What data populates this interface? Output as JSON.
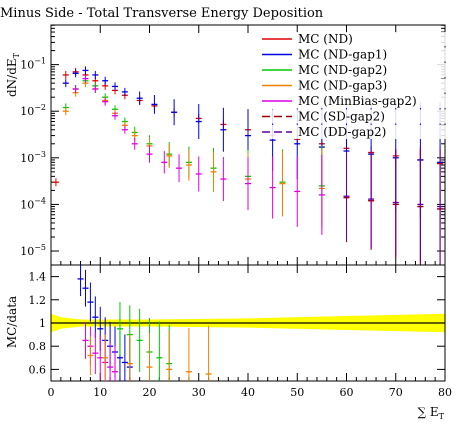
{
  "chart_data": [
    {
      "type": "scatter",
      "title": "Minus Side - Total Transverse Energy Deposition",
      "ylabel": "dN/dE_T",
      "xlabel": "",
      "xlim": [
        0,
        80
      ],
      "ylim_log10": [
        -5.3,
        -0.15
      ],
      "yscale": "log",
      "x_ticks": [
        0,
        10,
        20,
        30,
        40,
        50,
        60,
        70,
        80
      ],
      "y_ticks": [
        {
          "exp": -1,
          "label_base": "10",
          "label_exp": "−1"
        },
        {
          "exp": -2,
          "label_base": "10",
          "label_exp": "−2"
        },
        {
          "exp": -3,
          "label_base": "10",
          "label_exp": "−3"
        },
        {
          "exp": -4,
          "label_base": "10",
          "label_exp": "−4"
        },
        {
          "exp": -5,
          "label_base": "10",
          "label_exp": "−5"
        }
      ],
      "series": [
        {
          "name": "MC (ND)",
          "color": "#e00000",
          "style": "solid",
          "x": [
            1,
            3,
            5,
            7,
            9,
            11,
            13,
            15,
            18,
            21,
            25,
            30,
            35,
            40,
            45,
            50,
            55,
            60,
            65,
            70,
            75,
            79
          ],
          "y": [
            0.0003,
            0.06,
            0.07,
            0.06,
            0.045,
            0.035,
            0.028,
            0.022,
            0.017,
            0.013,
            0.0095,
            0.007,
            0.0052,
            0.004,
            0.0031,
            0.0025,
            0.002,
            0.0016,
            0.0013,
            0.0011,
            0.0009,
            0.00075
          ]
        },
        {
          "name": "MC (ND-gap1)",
          "color": "#0000e0",
          "style": "solid",
          "x": [
            3,
            5,
            7,
            9,
            11,
            13,
            15,
            18,
            21,
            25,
            30,
            35,
            40,
            45,
            50,
            55,
            60,
            65,
            70,
            75,
            79
          ],
          "y": [
            0.04,
            0.065,
            0.075,
            0.06,
            0.045,
            0.034,
            0.026,
            0.019,
            0.014,
            0.0095,
            0.006,
            0.004,
            0.003,
            0.0024,
            0.002,
            0.0017,
            0.0014,
            0.0012,
            0.001,
            0.0009,
            0.0008
          ]
        },
        {
          "name": "MC (ND-gap2)",
          "color": "#00c800",
          "style": "solid",
          "x": [
            3,
            5,
            7,
            9,
            11,
            13,
            15,
            17,
            20,
            24,
            28,
            33,
            40,
            47,
            55
          ],
          "y": [
            0.012,
            0.03,
            0.045,
            0.035,
            0.02,
            0.011,
            0.006,
            0.0035,
            0.002,
            0.0012,
            0.0008,
            0.0006,
            0.0004,
            0.0003,
            0.00025
          ]
        },
        {
          "name": "MC (ND-gap3)",
          "color": "#f08000",
          "style": "solid",
          "x": [
            3,
            5,
            7,
            9,
            11,
            13,
            15,
            17,
            20,
            24,
            28,
            33,
            40,
            47,
            55
          ],
          "y": [
            0.01,
            0.025,
            0.04,
            0.03,
            0.017,
            0.009,
            0.005,
            0.003,
            0.0018,
            0.0011,
            0.0007,
            0.0005,
            0.00035,
            0.00028,
            0.00022
          ]
        },
        {
          "name": "MC (MinBias-gap2)",
          "color": "#e000e0",
          "style": "solid",
          "x": [
            5,
            7,
            9,
            11,
            13,
            15,
            17,
            20,
            23,
            26,
            30,
            35,
            40,
            45,
            50,
            55,
            60,
            65,
            70,
            75,
            79
          ],
          "y": [
            0.03,
            0.05,
            0.03,
            0.016,
            0.008,
            0.004,
            0.002,
            0.0012,
            0.0008,
            0.0006,
            0.00045,
            0.00035,
            0.00028,
            0.00023,
            0.00019,
            0.00016,
            0.00014,
            0.00012,
            0.0001,
            9e-05,
            8e-05
          ]
        },
        {
          "name": "MC (SD-gap2)",
          "color": "#a00000",
          "style": "dashed",
          "x": [
            60,
            65,
            70,
            75,
            79
          ],
          "y": [
            0.00014,
            0.00012,
            0.0001,
            9e-05,
            8e-05
          ]
        },
        {
          "name": "MC (DD-gap2)",
          "color": "#6000a0",
          "style": "dashed",
          "x": [
            60,
            65,
            70,
            75,
            79
          ],
          "y": [
            0.00015,
            0.00013,
            0.00011,
            0.0001,
            9e-05
          ]
        }
      ],
      "legend": "top-right"
    },
    {
      "type": "scatter",
      "ylabel": "MC/data",
      "xlabel": "∑ E_T",
      "xlim": [
        0,
        80
      ],
      "ylim": [
        0.5,
        1.5
      ],
      "x_ticks": [
        0,
        10,
        20,
        30,
        40,
        50,
        60,
        70,
        80
      ],
      "y_ticks": [
        0.6,
        0.8,
        1.0,
        1.2,
        1.4
      ],
      "y_tick_labels": [
        "0.6",
        "0.8",
        "1",
        "1.2",
        "1.4"
      ],
      "band": {
        "color": "#ffff00",
        "center": 1.0,
        "x": [
          0,
          2,
          6,
          20,
          40,
          60,
          80
        ],
        "half_width": [
          0.08,
          0.05,
          0.03,
          0.03,
          0.04,
          0.06,
          0.08
        ]
      },
      "series": [
        {
          "name": "MC (ND-gap1)",
          "color": "#0000e0",
          "x": [
            6,
            7,
            8,
            9,
            10,
            11,
            12,
            13,
            14,
            15,
            16
          ],
          "y": [
            1.38,
            1.3,
            1.18,
            1.05,
            0.95,
            0.85,
            0.8,
            0.75,
            0.7,
            0.66,
            0.62
          ]
        },
        {
          "name": "MC (MinBias-gap2)",
          "color": "#e000e0",
          "x": [
            7,
            8,
            9,
            10,
            11,
            12,
            13
          ],
          "y": [
            0.85,
            0.8,
            0.74,
            0.7,
            0.66,
            0.62,
            0.58
          ]
        },
        {
          "name": "MC (ND-gap2)",
          "color": "#00c800",
          "x": [
            14,
            16,
            18,
            20,
            22,
            24
          ],
          "y": [
            0.95,
            0.9,
            0.85,
            0.75,
            0.7,
            0.65
          ]
        },
        {
          "name": "MC (ND-gap3)",
          "color": "#f08000",
          "x": [
            8,
            11,
            16,
            20,
            24,
            28,
            32
          ],
          "y": [
            0.72,
            0.7,
            0.65,
            0.62,
            0.6,
            0.58,
            0.56
          ]
        }
      ]
    }
  ],
  "legend_entries": [
    {
      "label": "MC (ND)",
      "color": "#e00000",
      "dashed": false
    },
    {
      "label": "MC (ND-gap1)",
      "color": "#0000e0",
      "dashed": false
    },
    {
      "label": "MC (ND-gap2)",
      "color": "#00c800",
      "dashed": false
    },
    {
      "label": "MC (ND-gap3)",
      "color": "#f08000",
      "dashed": false
    },
    {
      "label": "MC (MinBias-gap2)",
      "color": "#e000e0",
      "dashed": false
    },
    {
      "label": "MC (SD-gap2)",
      "color": "#a00000",
      "dashed": true
    },
    {
      "label": "MC (DD-gap2)",
      "color": "#6000a0",
      "dashed": true
    }
  ]
}
